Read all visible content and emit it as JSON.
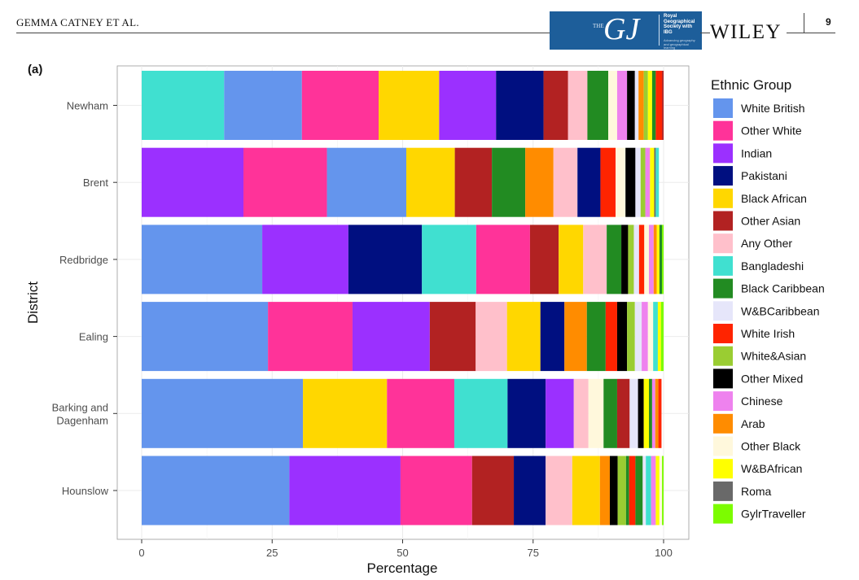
{
  "header": {
    "running_head": "GEMMA CATNEY ET AL.",
    "journal_logo_the": "THE",
    "journal_logo_mark": "GJ",
    "journal_society": "Royal Geographical Society with IBG",
    "journal_society_tagline": "Advancing geography and geographical learning",
    "publisher": "WILEY",
    "page_number": "9"
  },
  "colors": {
    "panel_bg": "#ffffff",
    "grid": "#ebebeb",
    "axis": "#333333"
  },
  "chart_data": {
    "type": "bar",
    "orientation": "horizontal",
    "stacked": true,
    "panel_label": "(a)",
    "xlabel": "Percentage",
    "ylabel": "District",
    "xlim": [
      0,
      100
    ],
    "xticks": [
      0,
      25,
      50,
      75,
      100
    ],
    "grid": true,
    "legend_title": "Ethnic Group",
    "legend_position": "right",
    "categories": [
      "Newham",
      "Brent",
      "Redbridge",
      "Ealing",
      "Barking and Dagenham",
      "Hounslow"
    ],
    "category_tick_lines": [
      [
        "Newham"
      ],
      [
        "Brent"
      ],
      [
        "Redbridge"
      ],
      [
        "Ealing"
      ],
      [
        "Barking and",
        "Dagenham"
      ],
      [
        "Hounslow"
      ]
    ],
    "groups": [
      {
        "name": "White British",
        "color": "#6495ED"
      },
      {
        "name": "Other White",
        "color": "#FF3399"
      },
      {
        "name": "Indian",
        "color": "#9B30FF"
      },
      {
        "name": "Pakistani",
        "color": "#000F80"
      },
      {
        "name": "Black African",
        "color": "#FFD700"
      },
      {
        "name": "Other Asian",
        "color": "#B22222"
      },
      {
        "name": "Any Other",
        "color": "#FFC0CB"
      },
      {
        "name": "Bangladeshi",
        "color": "#40E0D0"
      },
      {
        "name": "Black Caribbean",
        "color": "#228B22"
      },
      {
        "name": "W&BCaribbean",
        "color": "#E6E6FA"
      },
      {
        "name": "White Irish",
        "color": "#FF2400"
      },
      {
        "name": "White&Asian",
        "color": "#9ACD32"
      },
      {
        "name": "Other Mixed",
        "color": "#000000"
      },
      {
        "name": "Chinese",
        "color": "#EE82EE"
      },
      {
        "name": "Arab",
        "color": "#FF8C00"
      },
      {
        "name": "Other Black",
        "color": "#FFF8DC"
      },
      {
        "name": "W&BAfrican",
        "color": "#FFFF00"
      },
      {
        "name": "Roma",
        "color": "#696969"
      },
      {
        "name": "GylrTraveller",
        "color": "#7CFC00"
      }
    ],
    "bars": [
      {
        "category": "Newham",
        "segments": [
          {
            "group": "Bangladeshi",
            "value": 15.8
          },
          {
            "group": "White British",
            "value": 14.9
          },
          {
            "group": "Other White",
            "value": 14.7
          },
          {
            "group": "Black African",
            "value": 11.6
          },
          {
            "group": "Indian",
            "value": 10.9
          },
          {
            "group": "Pakistani",
            "value": 9.1
          },
          {
            "group": "Other Asian",
            "value": 4.7
          },
          {
            "group": "Any Other",
            "value": 3.7
          },
          {
            "group": "Black Caribbean",
            "value": 4.0
          },
          {
            "group": "Other Black",
            "value": 1.7
          },
          {
            "group": "Chinese",
            "value": 1.9
          },
          {
            "group": "Other Mixed",
            "value": 1.5
          },
          {
            "group": "W&BCaribbean",
            "value": 0.7
          },
          {
            "group": "Arab",
            "value": 1.0
          },
          {
            "group": "White&Asian",
            "value": 0.8
          },
          {
            "group": "W&BAfrican",
            "value": 0.8
          },
          {
            "group": "Black Caribbean",
            "value": 0.7
          },
          {
            "group": "White Irish",
            "value": 1.2
          },
          {
            "group": "Other Asian",
            "value": 0.3
          },
          {
            "group": "GylrTraveller",
            "value": 0.0
          }
        ]
      },
      {
        "category": "Brent",
        "segments": [
          {
            "group": "Indian",
            "value": 19.5
          },
          {
            "group": "Other White",
            "value": 16.0
          },
          {
            "group": "White British",
            "value": 15.2
          },
          {
            "group": "Black African",
            "value": 9.3
          },
          {
            "group": "Other Asian",
            "value": 7.1
          },
          {
            "group": "Black Caribbean",
            "value": 6.4
          },
          {
            "group": "Arab",
            "value": 5.4
          },
          {
            "group": "Any Other",
            "value": 4.6
          },
          {
            "group": "Pakistani",
            "value": 4.4
          },
          {
            "group": "White Irish",
            "value": 2.9
          },
          {
            "group": "Other Black",
            "value": 1.9
          },
          {
            "group": "Other Mixed",
            "value": 1.9
          },
          {
            "group": "W&BCaribbean",
            "value": 1.0
          },
          {
            "group": "White&Asian",
            "value": 0.9
          },
          {
            "group": "Chinese",
            "value": 0.9
          },
          {
            "group": "W&BAfrican",
            "value": 0.8
          },
          {
            "group": "Roma",
            "value": 0.3
          },
          {
            "group": "Bangladeshi",
            "value": 0.6
          }
        ]
      },
      {
        "category": "Redbridge",
        "segments": [
          {
            "group": "White British",
            "value": 23.1
          },
          {
            "group": "Indian",
            "value": 16.5
          },
          {
            "group": "Pakistani",
            "value": 14.1
          },
          {
            "group": "Bangladeshi",
            "value": 10.4
          },
          {
            "group": "Other White",
            "value": 10.3
          },
          {
            "group": "Other Asian",
            "value": 5.5
          },
          {
            "group": "Black African",
            "value": 4.7
          },
          {
            "group": "Any Other",
            "value": 4.5
          },
          {
            "group": "Black Caribbean",
            "value": 2.8
          },
          {
            "group": "Other Mixed",
            "value": 1.3
          },
          {
            "group": "White&Asian",
            "value": 1.1
          },
          {
            "group": "W&BCaribbean",
            "value": 1.0
          },
          {
            "group": "White Irish",
            "value": 1.0
          },
          {
            "group": "Other Black",
            "value": 0.9
          },
          {
            "group": "Chinese",
            "value": 0.9
          },
          {
            "group": "Arab",
            "value": 0.6
          },
          {
            "group": "W&BAfrican",
            "value": 0.5
          },
          {
            "group": "Black Caribbean",
            "value": 0.5
          },
          {
            "group": "GylrTraveller",
            "value": 0.3
          }
        ]
      },
      {
        "category": "Ealing",
        "segments": [
          {
            "group": "White British",
            "value": 24.2
          },
          {
            "group": "Other White",
            "value": 16.2
          },
          {
            "group": "Indian",
            "value": 14.8
          },
          {
            "group": "Other Asian",
            "value": 8.8
          },
          {
            "group": "Any Other",
            "value": 6.0
          },
          {
            "group": "Black African",
            "value": 6.4
          },
          {
            "group": "Pakistani",
            "value": 4.6
          },
          {
            "group": "Arab",
            "value": 4.3
          },
          {
            "group": "Black Caribbean",
            "value": 3.6
          },
          {
            "group": "White Irish",
            "value": 2.2
          },
          {
            "group": "Other Mixed",
            "value": 1.9
          },
          {
            "group": "White&Asian",
            "value": 1.5
          },
          {
            "group": "W&BCaribbean",
            "value": 1.3
          },
          {
            "group": "Chinese",
            "value": 1.2
          },
          {
            "group": "Other Black",
            "value": 1.0
          },
          {
            "group": "Bangladeshi",
            "value": 0.9
          },
          {
            "group": "W&BAfrican",
            "value": 0.6
          },
          {
            "group": "GylrTraveller",
            "value": 0.5
          }
        ]
      },
      {
        "category": "Barking and Dagenham",
        "segments": [
          {
            "group": "White British",
            "value": 30.9
          },
          {
            "group": "Black African",
            "value": 16.1
          },
          {
            "group": "Other White",
            "value": 12.9
          },
          {
            "group": "Bangladeshi",
            "value": 10.2
          },
          {
            "group": "Pakistani",
            "value": 7.3
          },
          {
            "group": "Indian",
            "value": 5.4
          },
          {
            "group": "Any Other",
            "value": 2.8
          },
          {
            "group": "Other Black",
            "value": 2.9
          },
          {
            "group": "Black Caribbean",
            "value": 2.6
          },
          {
            "group": "Other Asian",
            "value": 2.4
          },
          {
            "group": "W&BCaribbean",
            "value": 1.6
          },
          {
            "group": "Other Mixed",
            "value": 1.1
          },
          {
            "group": "W&BAfrican",
            "value": 1.0
          },
          {
            "group": "Black Caribbean",
            "value": 0.6
          },
          {
            "group": "Chinese",
            "value": 0.6
          },
          {
            "group": "Arab",
            "value": 0.6
          },
          {
            "group": "White Irish",
            "value": 0.6
          }
        ]
      },
      {
        "category": "Hounslow",
        "segments": [
          {
            "group": "White British",
            "value": 28.3
          },
          {
            "group": "Indian",
            "value": 21.3
          },
          {
            "group": "Other White",
            "value": 13.7
          },
          {
            "group": "Other Asian",
            "value": 8.0
          },
          {
            "group": "Pakistani",
            "value": 6.1
          },
          {
            "group": "Any Other",
            "value": 5.1
          },
          {
            "group": "Black African",
            "value": 5.3
          },
          {
            "group": "Arab",
            "value": 1.9
          },
          {
            "group": "Other Mixed",
            "value": 1.5
          },
          {
            "group": "White&Asian",
            "value": 1.6
          },
          {
            "group": "Black Caribbean",
            "value": 0.6
          },
          {
            "group": "White Irish",
            "value": 1.2
          },
          {
            "group": "Black Caribbean",
            "value": 1.4
          },
          {
            "group": "W&BCaribbean",
            "value": 0.6
          },
          {
            "group": "Bangladeshi",
            "value": 1.0
          },
          {
            "group": "Chinese",
            "value": 0.9
          },
          {
            "group": "W&BAfrican",
            "value": 0.7
          },
          {
            "group": "Other Black",
            "value": 0.5
          },
          {
            "group": "GylrTraveller",
            "value": 0.3
          }
        ]
      }
    ]
  }
}
